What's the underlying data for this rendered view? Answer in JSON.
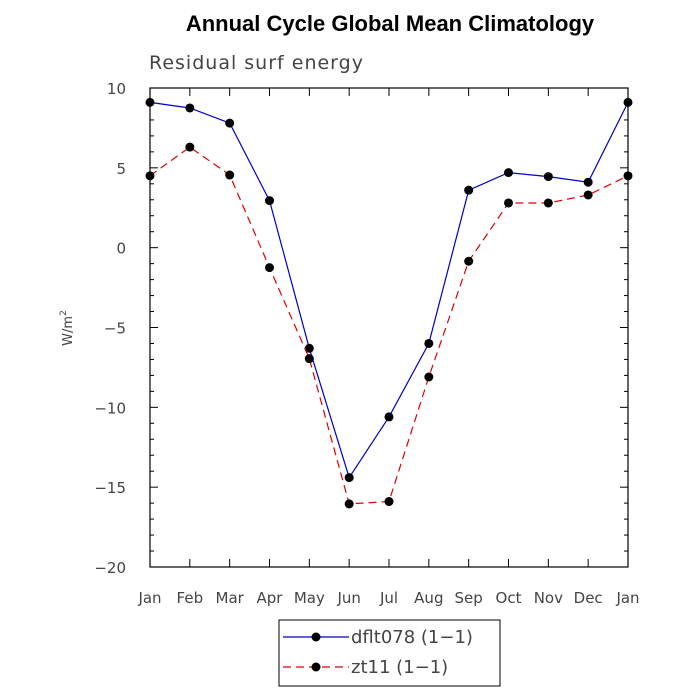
{
  "chart_data": {
    "type": "line",
    "title": "Annual Cycle Global Mean Climatology",
    "subtitle": "Residual surf energy",
    "xlabel": "",
    "ylabel": "W/m",
    "ylabel_superscript": "2",
    "categories": [
      "Jan",
      "Feb",
      "Mar",
      "Apr",
      "May",
      "Jun",
      "Jul",
      "Aug",
      "Sep",
      "Oct",
      "Nov",
      "Dec",
      "Jan"
    ],
    "ylim": [
      -20,
      10
    ],
    "yticks": [
      -20,
      -15,
      -10,
      -5,
      0,
      5,
      10
    ],
    "ytick_labels": [
      "−20",
      "−15",
      "−10",
      "−5",
      "0",
      "5",
      "10"
    ],
    "grid": false,
    "legend_position": "bottom-center",
    "series": [
      {
        "name": "dflt078 (1−1)",
        "color": "#0000cc",
        "dash": "solid",
        "marker": "filled-circle",
        "values": [
          9.1,
          8.75,
          7.8,
          2.95,
          -6.3,
          -14.4,
          -10.6,
          -6.0,
          3.6,
          4.7,
          4.45,
          4.1,
          9.1
        ]
      },
      {
        "name": "zt11 (1−1)",
        "color": "#e00000",
        "dash": "dashed",
        "marker": "filled-circle",
        "values": [
          4.5,
          6.3,
          4.55,
          -1.25,
          -6.95,
          -16.05,
          -15.9,
          -8.1,
          -0.85,
          2.8,
          2.8,
          3.3,
          4.5
        ]
      }
    ]
  }
}
